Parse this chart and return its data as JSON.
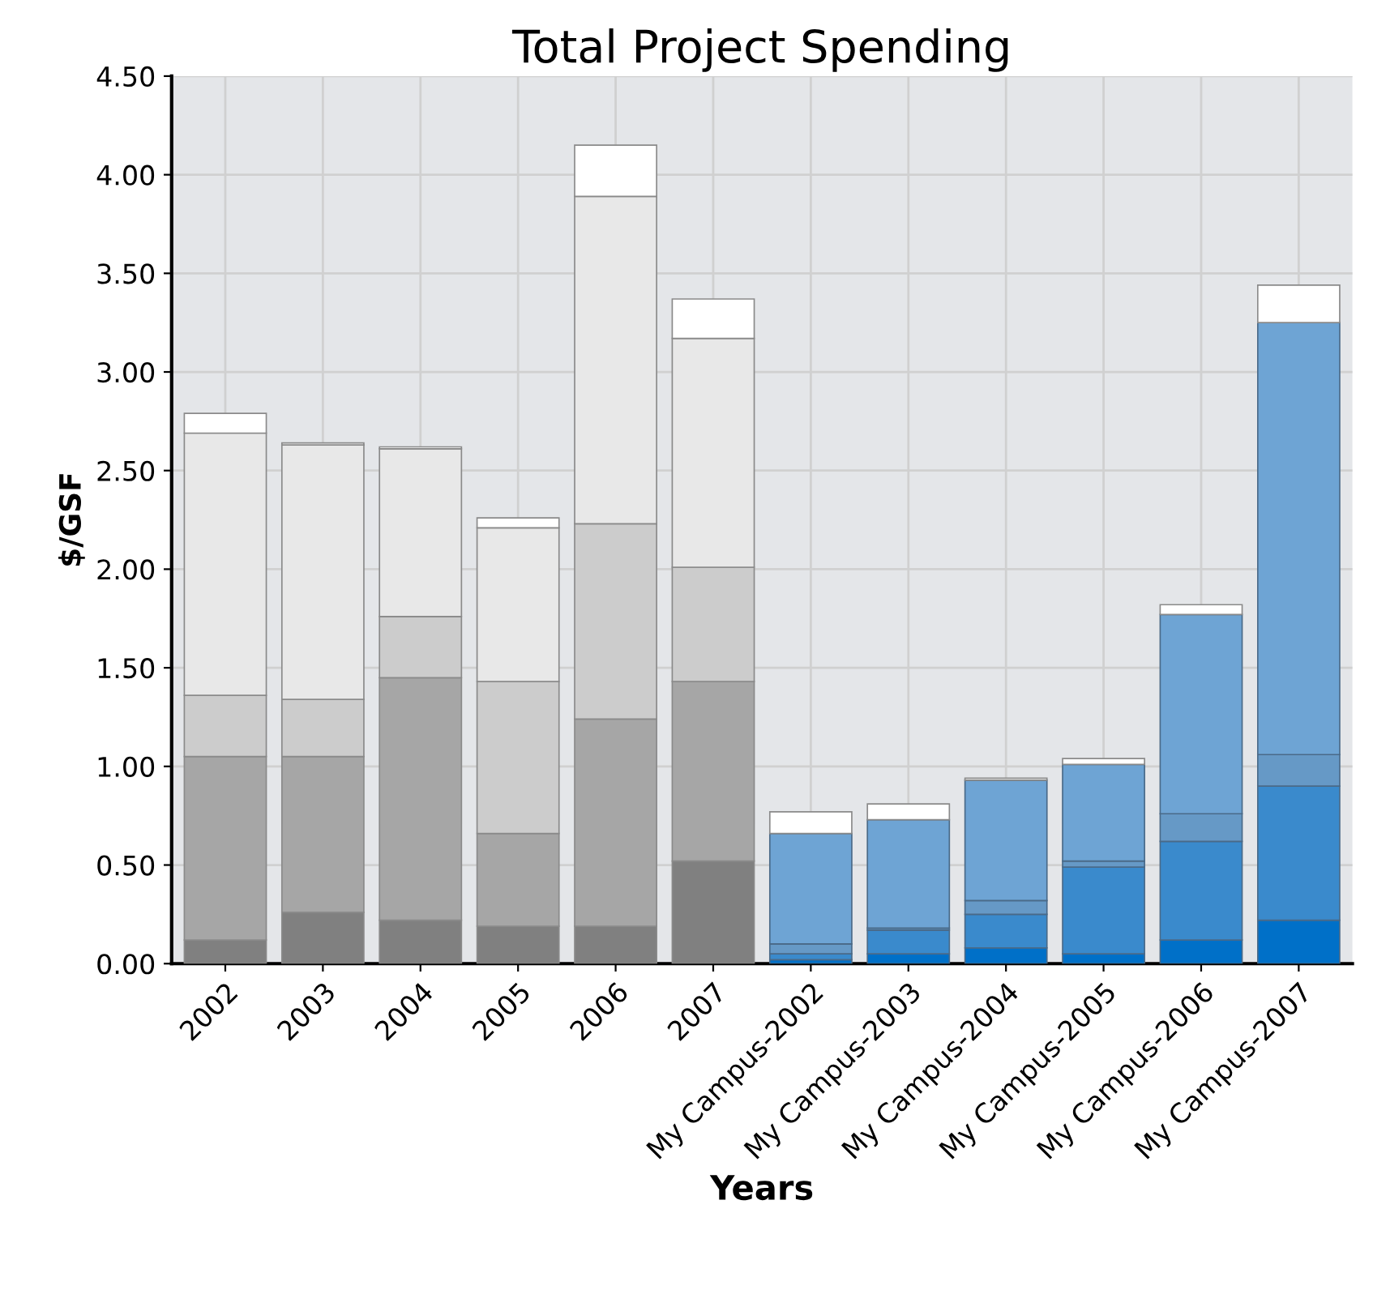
{
  "chart_data": {
    "type": "bar",
    "title": "Total Project Spending",
    "xlabel": "Years",
    "ylabel": "$/GSF",
    "stacked": true,
    "grid": true,
    "categories": [
      "2002",
      "2003",
      "2004",
      "2005",
      "2006",
      "2007",
      "My Campus-2002",
      "My Campus-2003",
      "My Campus-2004",
      "My Campus-2005",
      "My Campus-2006",
      "My Campus-2007"
    ],
    "series": [
      {
        "colors": [
          "#808080",
          "#808080",
          "#808080",
          "#808080",
          "#808080",
          "#808080",
          "#0070c8",
          "#0070c8",
          "#0070c8",
          "#0070c8",
          "#0070c8",
          "#0070c8"
        ],
        "values": [
          0.12,
          0.26,
          0.22,
          0.19,
          0.19,
          0.52,
          0.02,
          0.05,
          0.08,
          0.05,
          0.12,
          0.22
        ]
      },
      {
        "colors": [
          "#a6a6a6",
          "#a6a6a6",
          "#a6a6a6",
          "#a6a6a6",
          "#a6a6a6",
          "#a6a6a6",
          "#3a8acc",
          "#3a8acc",
          "#3a8acc",
          "#3a8acc",
          "#3a8acc",
          "#3a8acc"
        ],
        "values": [
          0.93,
          0.79,
          1.23,
          0.47,
          1.05,
          0.91,
          0.03,
          0.12,
          0.17,
          0.44,
          0.5,
          0.68
        ]
      },
      {
        "colors": [
          "#cccccc",
          "#cccccc",
          "#cccccc",
          "#cccccc",
          "#cccccc",
          "#cccccc",
          "#6699c6",
          "#6699c6",
          "#6699c6",
          "#6699c6",
          "#6699c6",
          "#6699c6"
        ],
        "values": [
          0.31,
          0.29,
          0.31,
          0.77,
          0.99,
          0.58,
          0.05,
          0.01,
          0.07,
          0.03,
          0.14,
          0.16
        ]
      },
      {
        "colors": [
          "#e8e8e8",
          "#e8e8e8",
          "#e8e8e8",
          "#e8e8e8",
          "#e8e8e8",
          "#e8e8e8",
          "#6ea4d4",
          "#6ea4d4",
          "#6ea4d4",
          "#6ea4d4",
          "#6ea4d4",
          "#6ea4d4"
        ],
        "values": [
          1.33,
          1.29,
          0.85,
          0.78,
          1.66,
          1.16,
          0.56,
          0.55,
          0.61,
          0.49,
          1.01,
          2.19
        ]
      },
      {
        "colors": [
          "#ffffff",
          "#ffffff",
          "#ffffff",
          "#ffffff",
          "#ffffff",
          "#ffffff",
          "#ffffff",
          "#ffffff",
          "#ffffff",
          "#ffffff",
          "#ffffff",
          "#ffffff"
        ],
        "values": [
          0.1,
          0.01,
          0.01,
          0.05,
          0.26,
          0.2,
          0.11,
          0.08,
          0.01,
          0.03,
          0.05,
          0.19
        ]
      }
    ],
    "ylim": [
      0,
      4.5
    ],
    "yticks": [
      {
        "value": 0,
        "label": "0.00"
      },
      {
        "value": 0.5,
        "label": "0.50"
      },
      {
        "value": 1,
        "label": "1.00"
      },
      {
        "value": 1.5,
        "label": "1.50"
      },
      {
        "value": 2,
        "label": "2.00"
      },
      {
        "value": 2.5,
        "label": "2.50"
      },
      {
        "value": 3,
        "label": "3.00"
      },
      {
        "value": 3.5,
        "label": "3.50"
      },
      {
        "value": 4,
        "label": "4.00"
      },
      {
        "value": 4.5,
        "label": "4.50"
      }
    ]
  }
}
